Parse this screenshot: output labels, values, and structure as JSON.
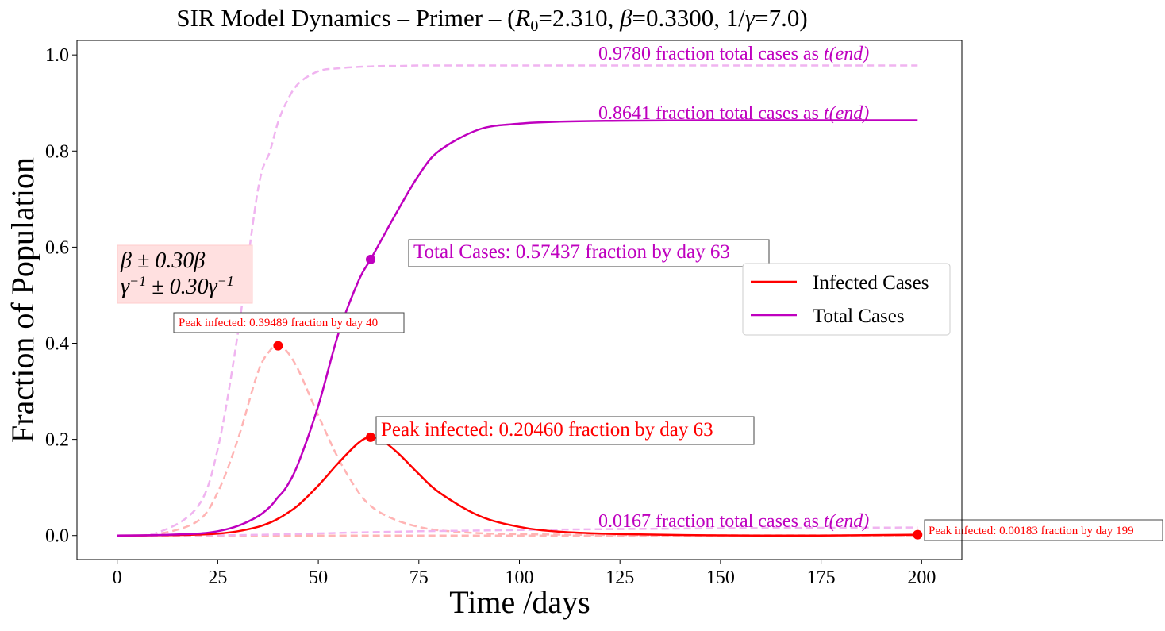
{
  "chart_data": {
    "type": "line",
    "title": "SIR Model Dynamics – Primer – (R₀=2.310, β=0.3300, 1/γ=7.0)",
    "title_parts": {
      "prefix": "SIR Model Dynamics – Primer – (",
      "r0_symbol": "R",
      "r0_sub": "0",
      "r0_value": "=2.310, ",
      "beta_symbol": "β",
      "beta_value": "=0.3300, 1/",
      "gamma_symbol": "γ",
      "gamma_value": "=7.0)"
    },
    "xlabel": "Time /days",
    "ylabel": "Fraction of Population",
    "xlim": [
      -10,
      210
    ],
    "ylim": [
      -0.05,
      1.03
    ],
    "xticks": [
      0,
      25,
      50,
      75,
      100,
      125,
      150,
      175,
      200
    ],
    "xtick_labels": [
      "0",
      "25",
      "50",
      "75",
      "100",
      "125",
      "150",
      "175",
      "200"
    ],
    "yticks": [
      0.0,
      0.2,
      0.4,
      0.6,
      0.8,
      1.0
    ],
    "ytick_labels": [
      "0.0",
      "0.2",
      "0.4",
      "0.6",
      "0.8",
      "1.0"
    ],
    "grid": false,
    "legend_position": "right",
    "legend": [
      {
        "label": "Infected Cases",
        "color": "#ff0000"
      },
      {
        "label": "Total Cases",
        "color": "#bf00bf"
      }
    ],
    "x": [
      0,
      10,
      20,
      25,
      30,
      35,
      38,
      40,
      42,
      45,
      50,
      55,
      60,
      63,
      66,
      70,
      75,
      80,
      90,
      100,
      110,
      125,
      150,
      175,
      199
    ],
    "series": [
      {
        "name": "Infected Cases",
        "color": "#ff0000",
        "style": "solid",
        "values": [
          0.0,
          0.0005,
          0.002,
          0.004,
          0.009,
          0.018,
          0.027,
          0.035,
          0.045,
          0.063,
          0.104,
          0.151,
          0.193,
          0.2046,
          0.197,
          0.17,
          0.128,
          0.09,
          0.041,
          0.018,
          0.008,
          0.003,
          0.0004,
          5e-05,
          0.0018
        ]
      },
      {
        "name": "Total Cases",
        "color": "#bf00bf",
        "style": "solid",
        "values": [
          0.0,
          0.001,
          0.004,
          0.009,
          0.02,
          0.04,
          0.06,
          0.08,
          0.1,
          0.15,
          0.27,
          0.42,
          0.53,
          0.5744,
          0.62,
          0.68,
          0.75,
          0.8,
          0.845,
          0.857,
          0.861,
          0.863,
          0.864,
          0.864,
          0.864
        ]
      },
      {
        "color": "#ffb4b4",
        "style": "dashed",
        "values": [
          0.0,
          0.003,
          0.03,
          0.09,
          0.2,
          0.34,
          0.385,
          0.395,
          0.385,
          0.345,
          0.25,
          0.16,
          0.09,
          0.062,
          0.045,
          0.03,
          0.018,
          0.011,
          0.005,
          0.003,
          0.002,
          0.001,
          0.0005,
          0.0003,
          0.0002
        ]
      },
      {
        "color": "#f0b4f0",
        "style": "dashed",
        "values": [
          0.0,
          0.006,
          0.06,
          0.18,
          0.42,
          0.72,
          0.8,
          0.86,
          0.9,
          0.94,
          0.966,
          0.972,
          0.975,
          0.976,
          0.977,
          0.977,
          0.978,
          0.978,
          0.978,
          0.978,
          0.978,
          0.978,
          0.978,
          0.978,
          0.978
        ]
      },
      {
        "color": "#ffb4b4",
        "style": "dashed",
        "values": [
          0.0,
          0.0,
          0.0,
          0.0,
          0.0,
          0.0,
          0.0,
          0.0,
          0.0,
          0.0,
          0.0,
          0.0,
          0.0,
          0.0,
          0.0,
          0.0,
          0.0,
          0.0,
          0.0,
          0.0,
          0.0,
          0.0,
          0.0,
          0.0,
          0.0
        ]
      },
      {
        "color": "#f0b4f0",
        "style": "dashed",
        "values": [
          0.0,
          0.0002,
          0.0005,
          0.0008,
          0.001,
          0.0015,
          0.002,
          0.0025,
          0.003,
          0.0035,
          0.0045,
          0.0055,
          0.0065,
          0.007,
          0.0075,
          0.008,
          0.009,
          0.0095,
          0.0105,
          0.0115,
          0.0125,
          0.0135,
          0.015,
          0.016,
          0.0167
        ]
      }
    ],
    "markers": [
      {
        "x": 40,
        "y": 0.39489,
        "color": "#ff0000"
      },
      {
        "x": 63,
        "y": 0.2046,
        "color": "#ff0000"
      },
      {
        "x": 63,
        "y": 0.57437,
        "color": "#bf00bf"
      },
      {
        "x": 199,
        "y": 0.00183,
        "color": "#ff0000"
      }
    ],
    "annotations": {
      "peak_dashed": "Peak infected: 0.39489 fraction by day 40",
      "peak_main": "Peak infected: 0.20460 fraction by day 63",
      "total_main": "Total Cases: 0.57437 fraction by day 63",
      "peak_end": "Peak infected: 0.00183 fraction by day 199",
      "final_upper": "0.9780 fraction total cases as",
      "final_main": "0.8641 fraction total cases as",
      "final_lower": "0.0167 fraction total cases as",
      "t_end": "t(end)"
    },
    "param_box": {
      "line1": "β ± 0.30β",
      "line2_gamma": "γ",
      "line2_sup": "−1",
      "line2_mid": " ± 0.30γ",
      "line2_sup2": "−1"
    },
    "colors": {
      "infected": "#ff0000",
      "total": "#bf00bf",
      "infected_light": "#ffb4b4",
      "total_light": "#f0b4f0",
      "param_box_bg": "#ffe0e0"
    }
  }
}
